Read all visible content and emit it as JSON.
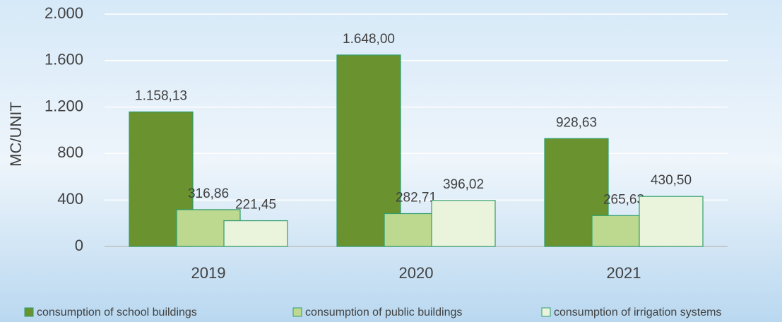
{
  "chart_data": {
    "type": "bar",
    "y_label": "MC/UNIT",
    "categories": [
      "2019",
      "2020",
      "2021"
    ],
    "series": [
      {
        "name": "consumption of school buildings",
        "color": "#6a922f",
        "values": [
          1158.13,
          1648.0,
          928.63
        ],
        "value_labels": [
          "1.158,13",
          "1.648,00",
          "928,63"
        ]
      },
      {
        "name": "consumption of public buildings",
        "color": "#bdd88f",
        "values": [
          316.86,
          282.71,
          265.63
        ],
        "value_labels": [
          "316,86",
          "282,71",
          "265,63"
        ]
      },
      {
        "name": "consumption of irrigation systems",
        "color": "#eaf3dc",
        "values": [
          221.45,
          396.02,
          430.5
        ],
        "value_labels": [
          "221,45",
          "396,02",
          "430,50"
        ]
      }
    ],
    "ylim": [
      0,
      2000
    ],
    "yticks": [
      0,
      400,
      800,
      {
        "value": 1200,
        "label": "1.200"
      },
      {
        "value": 1600,
        "label": "1.600"
      },
      {
        "value": 2000,
        "label": "2.000"
      }
    ],
    "grid": true,
    "legend": "bottom"
  }
}
